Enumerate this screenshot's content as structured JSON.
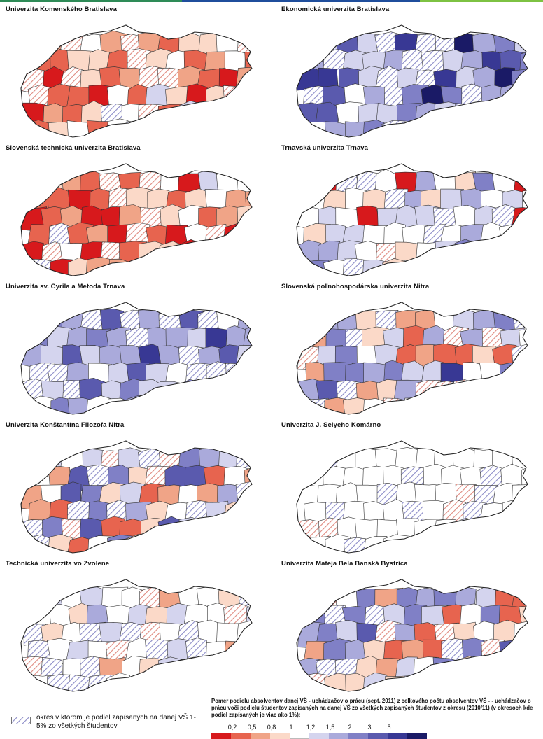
{
  "colors": {
    "top_bar": [
      "#2e8b57",
      "#1f4e9c",
      "#7dc242"
    ],
    "hatch": "#8c8cc8",
    "scale": [
      "#d7191c",
      "#e7644f",
      "#f0a487",
      "#fbd9c8",
      "#ffffff",
      "#d4d4ee",
      "#aaaadb",
      "#8080c6",
      "#5a5aae",
      "#383894",
      "#1a1a66"
    ]
  },
  "panels": [
    {
      "title": "Univerzita Komenského Bratislava"
    },
    {
      "title": "Ekonomická univerzita Bratislava"
    },
    {
      "title": "Slovenská technická univerzita Bratislava"
    },
    {
      "title": "Trnavská univerzita Trnava"
    },
    {
      "title": "Univerzita sv. Cyrila a Metoda Trnava"
    },
    {
      "title": "Slovenská poľnohospodárska univerzita Nitra"
    },
    {
      "title": "Univerzita Konštantína Filozofa Nitra"
    },
    {
      "title": "Univerzita J. Selyeho Komárno"
    },
    {
      "title": "Technická univerzita vo Zvolene"
    },
    {
      "title": "Univerzita Mateja Bela Banská Bystrica"
    }
  ],
  "legend": {
    "hatch_text": "okres v ktorom je podiel zapísaných na danej VŠ 1-5% zo všetkých študentov",
    "scale_title": "Pomer podielu absolventov danej VŠ - uchádzačov o prácu (sept. 2011) z celkového počtu absolventov VŠ - - uchádzačov o prácu voči podielu študentov zapísaných na danej VŠ zo všetkých zapísaných študentov z okresu (2010/11) (v okresoch kde podiel zapísaných je viac ako 1%):",
    "ticks": [
      "0,2",
      "0,5",
      "0,8",
      "1",
      "1,2",
      "1,5",
      "2",
      "3",
      "5"
    ]
  }
}
